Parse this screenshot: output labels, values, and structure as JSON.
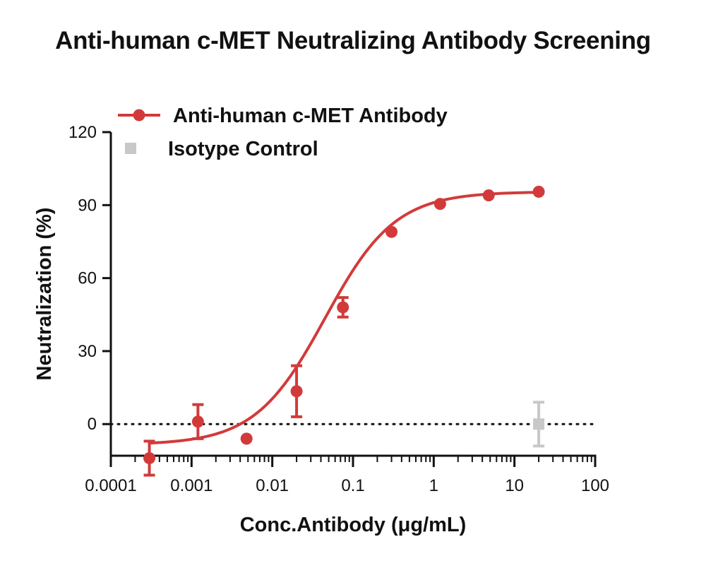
{
  "chart_data": {
    "type": "scatter",
    "title": "Anti-human c-MET Neutralizing Antibody Screening",
    "xlabel": "Conc.Antibody (μg/mL)",
    "ylabel": "Neutralization (%)",
    "x_scale": "log",
    "xlim": [
      0.0001,
      100
    ],
    "ylim": [
      -13,
      120
    ],
    "x_ticks": [
      "0.0001",
      "0.001",
      "0.01",
      "0.1",
      "1",
      "10",
      "100"
    ],
    "x_tick_values": [
      0.0001,
      0.001,
      0.01,
      0.1,
      1,
      10,
      100
    ],
    "y_ticks": [
      "0",
      "30",
      "60",
      "90",
      "120"
    ],
    "y_tick_values": [
      0,
      30,
      60,
      90,
      120
    ],
    "reference_line": {
      "y": 0,
      "style": "dotted"
    },
    "legend_position": "top-left",
    "series": [
      {
        "name": "Anti-human c-MET Antibody",
        "color": "#d23a3a",
        "marker": "circle",
        "fit": "sigmoidal",
        "fit_params": {
          "bottom": -8.5,
          "top": 95.5,
          "ec50": 0.045,
          "hill": 1.0
        },
        "points": [
          {
            "x": 0.0003,
            "y": -14,
            "err": 7
          },
          {
            "x": 0.0012,
            "y": 1,
            "err": 7
          },
          {
            "x": 0.0048,
            "y": -6,
            "err": 0
          },
          {
            "x": 0.02,
            "y": 13.5,
            "err": 10.5
          },
          {
            "x": 0.075,
            "y": 48,
            "err": 4
          },
          {
            "x": 0.3,
            "y": 79,
            "err": 0
          },
          {
            "x": 1.2,
            "y": 90.5,
            "err": 0
          },
          {
            "x": 4.8,
            "y": 94,
            "err": 0
          },
          {
            "x": 20,
            "y": 95.5,
            "err": 0
          }
        ]
      },
      {
        "name": "Isotype Control",
        "color": "#c8c8c8",
        "marker": "square",
        "points": [
          {
            "x": 20,
            "y": 0,
            "err": 9
          }
        ]
      }
    ]
  }
}
